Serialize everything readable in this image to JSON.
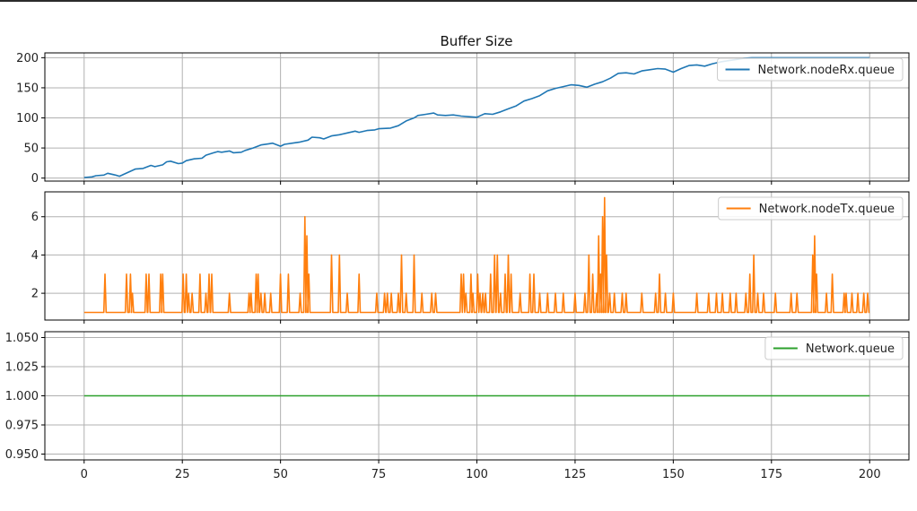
{
  "chart_data": {
    "type": "line",
    "title": "Buffer Size",
    "x_ticks": [
      0,
      25,
      50,
      75,
      100,
      125,
      150,
      175,
      200
    ],
    "xlim": [
      -10,
      210
    ],
    "grid": true,
    "legend_position": "top-right",
    "subplots": [
      {
        "ylim": [
          -5,
          208
        ],
        "y_ticks": [
          0,
          50,
          100,
          150,
          200
        ],
        "series": [
          {
            "name": "Network.nodeRx.queue",
            "color": "#1f77b4",
            "x": [
              0,
              2,
              3,
              5,
              6,
              8,
              9,
              10,
              12,
              13,
              15,
              17,
              18,
              20,
              21,
              22,
              24,
              25,
              26,
              28,
              30,
              31,
              33,
              34,
              35,
              37,
              38,
              40,
              41,
              43,
              45,
              47,
              48,
              50,
              51,
              53,
              55,
              57,
              58,
              60,
              61,
              63,
              65,
              67,
              69,
              70,
              72,
              74,
              75,
              78,
              80,
              82,
              84,
              85,
              87,
              89,
              90,
              92,
              94,
              96,
              98,
              100,
              102,
              104,
              106,
              108,
              110,
              112,
              114,
              116,
              118,
              120,
              122,
              124,
              126,
              128,
              130,
              132,
              134,
              136,
              138,
              140,
              142,
              144,
              146,
              148,
              150,
              152,
              154,
              156,
              158,
              160,
              162,
              164,
              166,
              168,
              170,
              172,
              175,
              180,
              185,
              190,
              195,
              200
            ],
            "y": [
              1,
              2,
              4,
              5,
              8,
              5,
              3,
              6,
              12,
              15,
              16,
              21,
              19,
              22,
              27,
              28,
              24,
              25,
              29,
              32,
              33,
              38,
              42,
              44,
              43,
              45,
              42,
              43,
              46,
              50,
              55,
              57,
              58,
              53,
              56,
              58,
              60,
              63,
              68,
              67,
              65,
              70,
              72,
              75,
              78,
              76,
              79,
              80,
              82,
              83,
              87,
              95,
              100,
              104,
              106,
              108,
              105,
              104,
              105,
              103,
              102,
              101,
              107,
              106,
              110,
              115,
              120,
              128,
              132,
              137,
              145,
              149,
              152,
              155,
              154,
              151,
              156,
              160,
              166,
              174,
              175,
              173,
              178,
              180,
              182,
              181,
              176,
              182,
              187,
              188,
              186,
              190,
              193,
              195,
              197,
              199,
              200,
              200,
              200,
              200,
              200,
              200,
              200,
              200
            ]
          }
        ]
      },
      {
        "ylim": [
          0.6,
          7.3
        ],
        "y_ticks": [
          2,
          4,
          6
        ],
        "series": [
          {
            "name": "Network.nodeTx.queue",
            "color": "#ff7f0e",
            "spikes": [
              [
                5.3,
                3
              ],
              [
                10.8,
                3
              ],
              [
                11.8,
                3
              ],
              [
                12.3,
                2
              ],
              [
                15.8,
                3
              ],
              [
                16.5,
                3
              ],
              [
                19.5,
                3
              ],
              [
                20.0,
                3
              ],
              [
                25.2,
                3
              ],
              [
                26.0,
                3
              ],
              [
                26.6,
                2
              ],
              [
                27.5,
                2
              ],
              [
                29.5,
                3
              ],
              [
                31.0,
                2
              ],
              [
                31.8,
                3
              ],
              [
                32.5,
                3
              ],
              [
                37.0,
                2
              ],
              [
                42.0,
                2
              ],
              [
                42.5,
                2
              ],
              [
                43.8,
                3
              ],
              [
                44.3,
                3
              ],
              [
                45.0,
                2
              ],
              [
                46.0,
                2
              ],
              [
                47.5,
                2
              ],
              [
                50.0,
                3
              ],
              [
                52.0,
                3
              ],
              [
                55.0,
                2
              ],
              [
                56.2,
                6
              ],
              [
                56.7,
                5
              ],
              [
                57.2,
                3
              ],
              [
                63.0,
                4
              ],
              [
                65.0,
                4
              ],
              [
                67.0,
                2
              ],
              [
                70.0,
                3
              ],
              [
                74.5,
                2
              ],
              [
                76.5,
                2
              ],
              [
                77.2,
                2
              ],
              [
                78.2,
                2
              ],
              [
                80.0,
                2
              ],
              [
                80.8,
                4
              ],
              [
                82.0,
                2
              ],
              [
                84.0,
                4
              ],
              [
                86.0,
                2
              ],
              [
                88.5,
                2
              ],
              [
                89.5,
                2
              ],
              [
                96.0,
                3
              ],
              [
                96.6,
                3
              ],
              [
                97.2,
                2
              ],
              [
                98.5,
                3
              ],
              [
                99.0,
                2
              ],
              [
                100.2,
                3
              ],
              [
                100.8,
                2
              ],
              [
                101.5,
                2
              ],
              [
                102.2,
                2
              ],
              [
                103.5,
                3
              ],
              [
                104.5,
                4
              ],
              [
                105.2,
                4
              ],
              [
                106.0,
                2
              ],
              [
                107.2,
                3
              ],
              [
                108.0,
                4
              ],
              [
                108.7,
                3
              ],
              [
                111.0,
                2
              ],
              [
                113.5,
                3
              ],
              [
                114.5,
                3
              ],
              [
                116.0,
                2
              ],
              [
                118.0,
                2
              ],
              [
                120.0,
                2
              ],
              [
                122.0,
                2
              ],
              [
                125.0,
                2
              ],
              [
                127.5,
                2
              ],
              [
                128.5,
                4
              ],
              [
                129.5,
                3
              ],
              [
                130.5,
                2
              ],
              [
                131.0,
                5
              ],
              [
                131.5,
                3
              ],
              [
                132.0,
                6
              ],
              [
                132.5,
                7
              ],
              [
                133.0,
                4
              ],
              [
                133.8,
                2
              ],
              [
                135.0,
                2
              ],
              [
                137.0,
                2
              ],
              [
                138.0,
                2
              ],
              [
                142.0,
                2
              ],
              [
                145.5,
                2
              ],
              [
                146.5,
                3
              ],
              [
                148.0,
                2
              ],
              [
                150.0,
                2
              ],
              [
                156.0,
                2
              ],
              [
                159.0,
                2
              ],
              [
                161.0,
                2
              ],
              [
                162.5,
                2
              ],
              [
                164.5,
                2
              ],
              [
                166.0,
                2
              ],
              [
                168.5,
                2
              ],
              [
                169.5,
                3
              ],
              [
                170.5,
                4
              ],
              [
                171.5,
                2
              ],
              [
                173.0,
                2
              ],
              [
                176.0,
                2
              ],
              [
                180.0,
                2
              ],
              [
                181.5,
                2
              ],
              [
                185.5,
                4
              ],
              [
                186.0,
                5
              ],
              [
                186.5,
                3
              ],
              [
                189.0,
                2
              ],
              [
                190.5,
                3
              ],
              [
                193.5,
                2
              ],
              [
                194.0,
                2
              ],
              [
                195.5,
                2
              ],
              [
                197.0,
                2
              ],
              [
                198.5,
                2
              ],
              [
                199.5,
                2
              ]
            ],
            "baseline": 1
          }
        ]
      },
      {
        "ylim": [
          0.945,
          1.055
        ],
        "y_ticks": [
          "0.950",
          "0.975",
          "1.000",
          "1.025",
          "1.050"
        ],
        "series": [
          {
            "name": "Network.queue",
            "color": "#2ca02c",
            "x": [
              0,
              200
            ],
            "y": [
              1.0,
              1.0
            ]
          }
        ]
      }
    ]
  }
}
